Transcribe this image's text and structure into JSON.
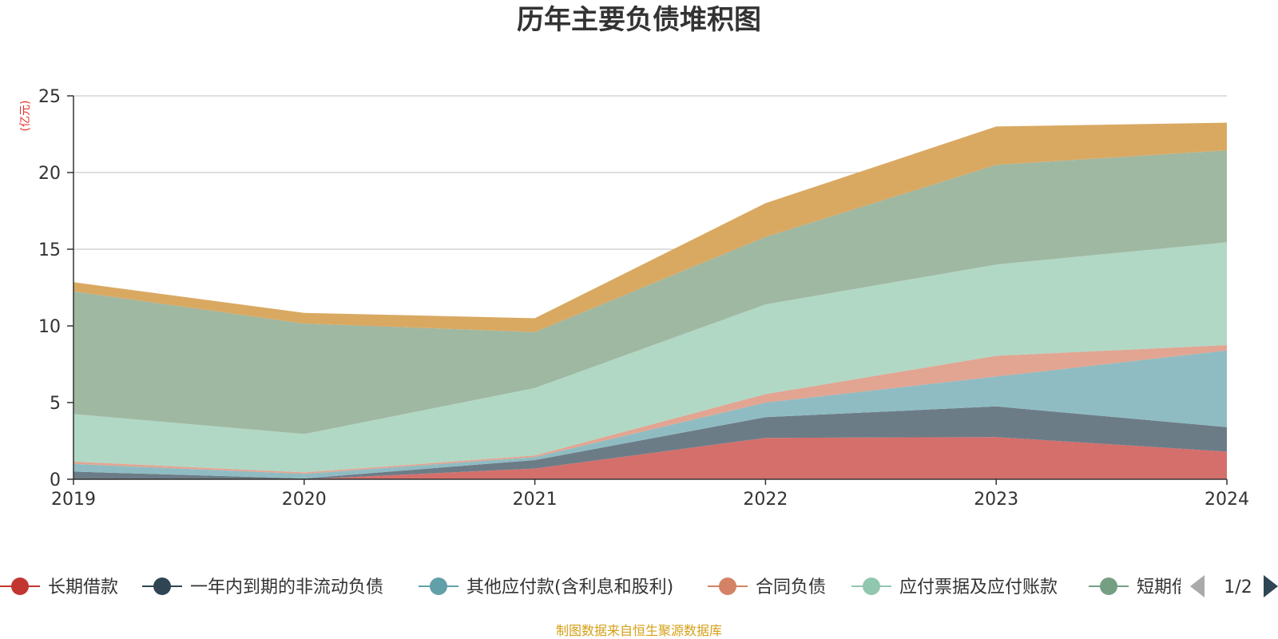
{
  "title": "历年主要负债堆积图",
  "footer": "制图数据来自恒生聚源数据库",
  "pager": "1/2",
  "chart_data": {
    "type": "area",
    "stacked": true,
    "title": "历年主要负债堆积图",
    "ylabel": "亿元",
    "ylim": [
      0,
      25
    ],
    "yticks": [
      0,
      5,
      10,
      15,
      20,
      25
    ],
    "grid": true,
    "legend_position": "bottom",
    "categories": [
      "2019",
      "2020",
      "2021",
      "2022",
      "2023",
      "2024"
    ],
    "series": [
      {
        "name": "长期借款",
        "color": "#c23531",
        "fill": "#d46f6b",
        "values": [
          0.0,
          0.0,
          0.7,
          2.7,
          2.75,
          1.8
        ]
      },
      {
        "name": "一年内到期的非流动负债",
        "color": "#2f4554",
        "fill": "#6c7c87",
        "values": [
          0.5,
          0.05,
          0.55,
          1.35,
          2.0,
          1.6
        ]
      },
      {
        "name": "其他应付款(含利息和股利)",
        "color": "#61a0a8",
        "fill": "#8fbcc2",
        "values": [
          0.5,
          0.3,
          0.2,
          0.95,
          1.95,
          5.0
        ]
      },
      {
        "name": "合同负债",
        "color": "#d48265",
        "fill": "#e1a592",
        "values": [
          0.15,
          0.1,
          0.1,
          0.55,
          1.35,
          0.35
        ]
      },
      {
        "name": "应付票据及应付账款",
        "color": "#91c7ae",
        "fill": "#b1d8c5",
        "values": [
          3.1,
          2.5,
          4.4,
          5.85,
          5.95,
          6.7
        ]
      },
      {
        "name": "短期借款",
        "color": "#749f83",
        "fill": "#9fb8a2",
        "values": [
          8.0,
          7.2,
          3.65,
          4.4,
          6.5,
          6.0
        ]
      },
      {
        "name": "",
        "color": "#ca8622",
        "fill": "#d9a962",
        "values": [
          0.6,
          0.7,
          0.9,
          2.2,
          2.5,
          1.8
        ]
      }
    ]
  }
}
